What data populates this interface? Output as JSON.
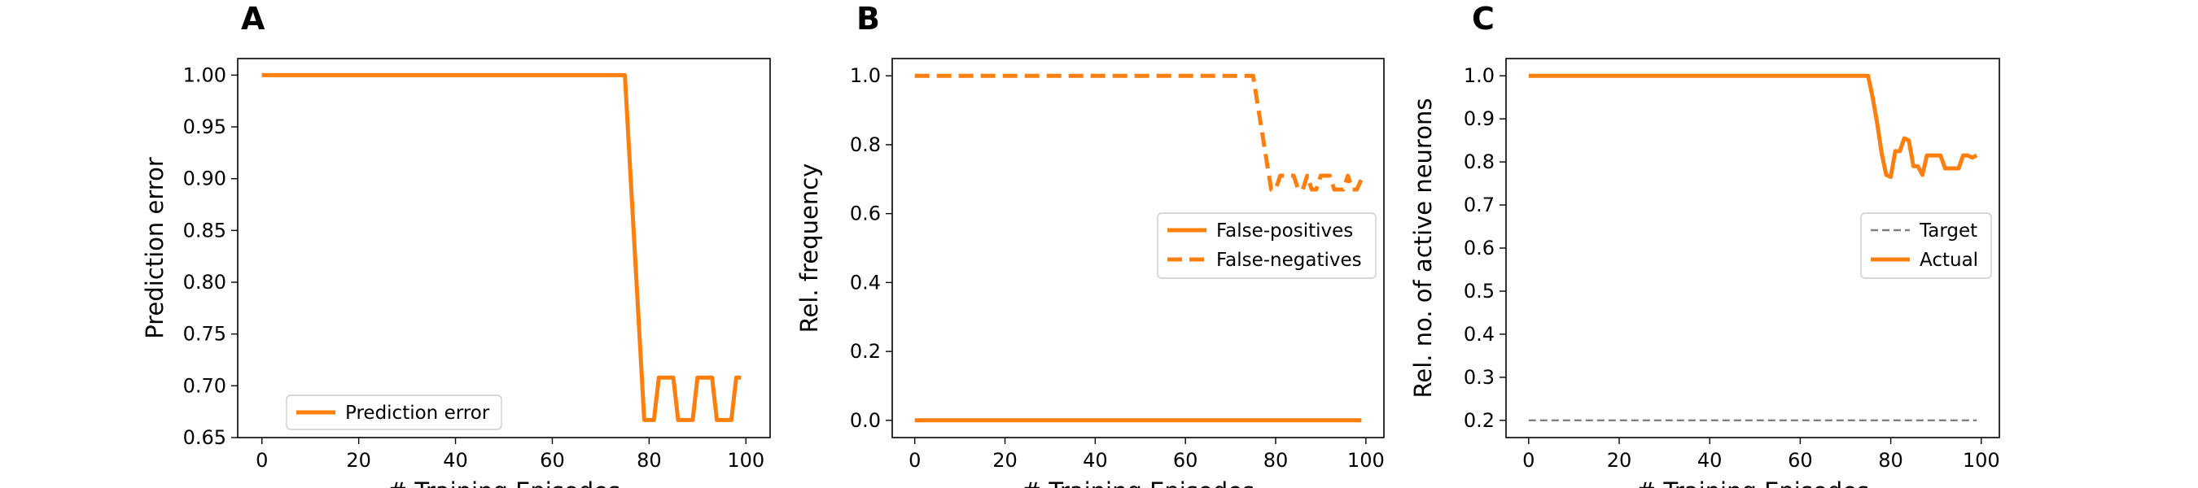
{
  "chart_data": [
    {
      "type": "line",
      "panel_label": "A",
      "xlabel": "# Training Episodes",
      "ylabel": "Prediction error",
      "xlim": [
        -5,
        105
      ],
      "ylim": [
        0.65,
        1.016
      ],
      "xticks": [
        0,
        20,
        40,
        60,
        80,
        100
      ],
      "yticks": [
        0.65,
        0.7,
        0.75,
        0.8,
        0.85,
        0.9,
        0.95,
        1.0
      ],
      "ytick_decimals": 2,
      "grid": false,
      "legend_position": "lower-left",
      "series": [
        {
          "name": "Prediction error",
          "color": "#ff7f0e",
          "dash": "solid",
          "x": [
            0,
            75,
            79,
            81,
            82,
            85,
            86,
            89,
            90,
            93,
            94,
            97,
            98,
            99
          ],
          "y": [
            1.0,
            1.0,
            0.667,
            0.667,
            0.708,
            0.708,
            0.667,
            0.667,
            0.708,
            0.708,
            0.667,
            0.667,
            0.708,
            0.708
          ]
        }
      ]
    },
    {
      "type": "line",
      "panel_label": "B",
      "xlabel": "# Training Episodes",
      "ylabel": "Rel. frequency",
      "xlim": [
        -5,
        104
      ],
      "ylim": [
        -0.05,
        1.05
      ],
      "xticks": [
        0,
        20,
        40,
        60,
        80,
        100
      ],
      "yticks": [
        0.0,
        0.2,
        0.4,
        0.6,
        0.8,
        1.0
      ],
      "ytick_decimals": 1,
      "grid": false,
      "legend_position": "center-right",
      "series": [
        {
          "name": "False-positives",
          "color": "#ff7f0e",
          "dash": "solid",
          "x": [
            0,
            99
          ],
          "y": [
            0.0,
            0.0
          ]
        },
        {
          "name": "False-negatives",
          "color": "#ff7f0e",
          "dash": "dashed",
          "x": [
            0,
            75,
            79,
            80,
            81,
            82,
            84,
            85,
            86,
            87,
            88,
            89,
            90,
            91,
            92,
            93,
            94,
            95,
            96,
            97,
            98,
            99
          ],
          "y": [
            1.0,
            1.0,
            0.67,
            0.67,
            0.71,
            0.71,
            0.71,
            0.67,
            0.67,
            0.71,
            0.67,
            0.67,
            0.71,
            0.71,
            0.71,
            0.67,
            0.67,
            0.67,
            0.71,
            0.67,
            0.67,
            0.7
          ]
        }
      ]
    },
    {
      "type": "line",
      "panel_label": "C",
      "xlabel": "# Training Episodes",
      "ylabel": "Rel. no. of active neurons",
      "xlim": [
        -5,
        104
      ],
      "ylim": [
        0.16,
        1.04
      ],
      "xticks": [
        0,
        20,
        40,
        60,
        80,
        100
      ],
      "yticks": [
        0.2,
        0.3,
        0.4,
        0.5,
        0.6,
        0.7,
        0.8,
        0.9,
        1.0
      ],
      "ytick_decimals": 1,
      "grid": false,
      "legend_position": "center-right",
      "series": [
        {
          "name": "Target",
          "color": "#808080",
          "dash": "dashed-thin",
          "x": [
            0,
            99
          ],
          "y": [
            0.2,
            0.2
          ]
        },
        {
          "name": "Actual",
          "color": "#ff7f0e",
          "dash": "solid",
          "x": [
            0,
            75,
            76,
            77,
            78,
            79,
            80,
            81,
            82,
            83,
            84,
            85,
            86,
            87,
            88,
            89,
            90,
            91,
            92,
            93,
            94,
            95,
            96,
            97,
            98,
            99
          ],
          "y": [
            1.0,
            1.0,
            0.95,
            0.89,
            0.82,
            0.77,
            0.765,
            0.825,
            0.825,
            0.855,
            0.85,
            0.79,
            0.79,
            0.77,
            0.815,
            0.815,
            0.815,
            0.815,
            0.785,
            0.785,
            0.785,
            0.785,
            0.815,
            0.815,
            0.81,
            0.815
          ]
        }
      ]
    }
  ]
}
